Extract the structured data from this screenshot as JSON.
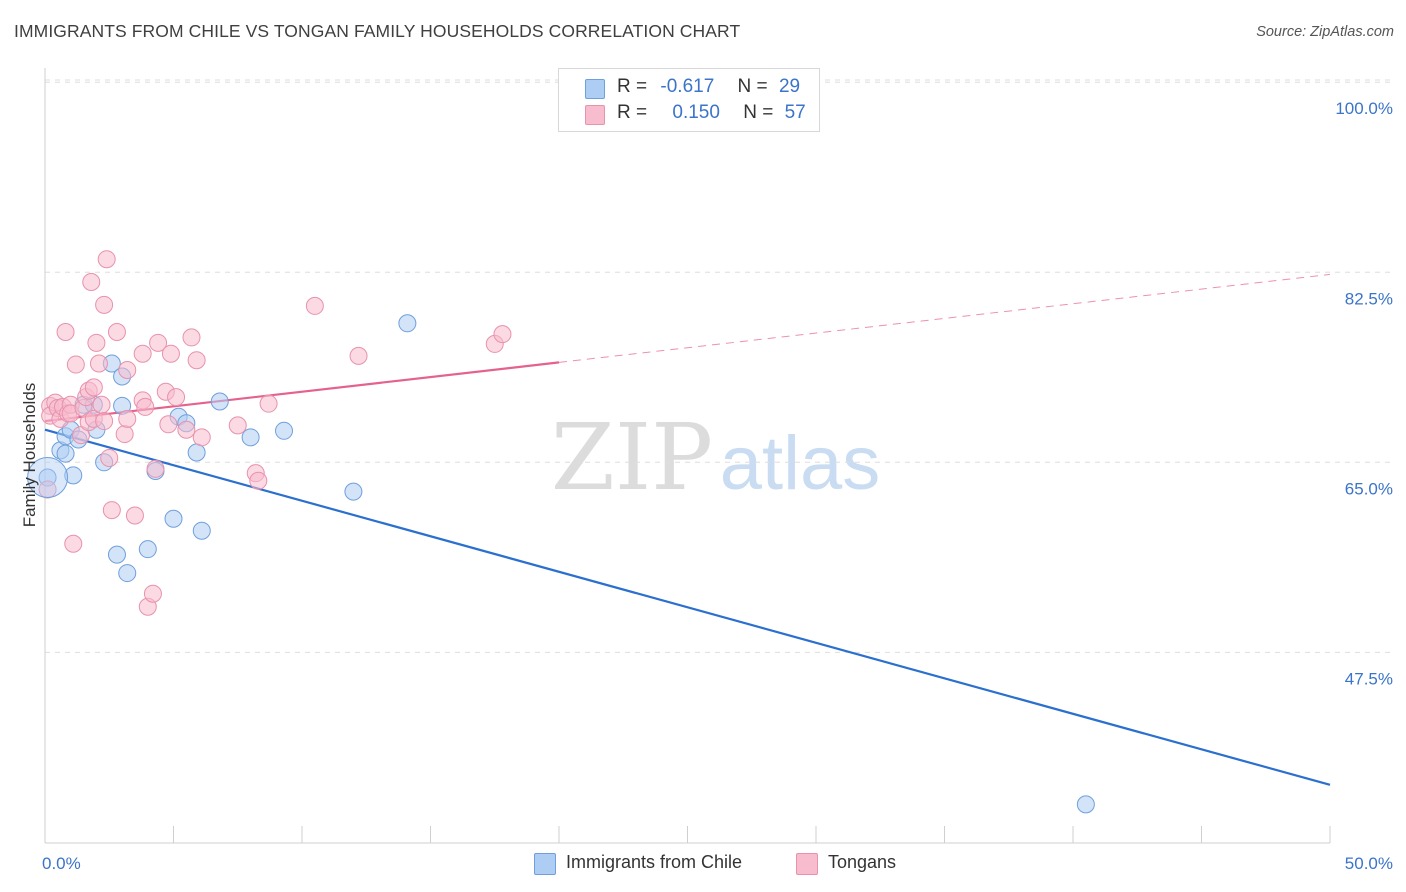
{
  "title": "IMMIGRANTS FROM CHILE VS TONGAN FAMILY HOUSEHOLDS CORRELATION CHART",
  "source": "Source: ZipAtlas.com",
  "watermark": {
    "zip": "ZIP",
    "atlas": "atlas"
  },
  "legend": {
    "rows": [
      {
        "r_label": "R =",
        "r_value": "-0.617",
        "n_label": "N =",
        "n_value": "29",
        "color": "#aecdf4"
      },
      {
        "r_label": "R =",
        "r_value": "0.150",
        "n_label": "N =",
        "n_value": "57",
        "color": "#f7bccd"
      }
    ]
  },
  "bottom_legend": [
    {
      "label": "Immigrants from Chile",
      "color": "#aecdf4"
    },
    {
      "label": "Tongans",
      "color": "#f7bccd"
    }
  ],
  "chart_data": {
    "type": "scatter",
    "title": "IMMIGRANTS FROM CHILE VS TONGAN FAMILY HOUSEHOLDS CORRELATION CHART",
    "xlabel": "",
    "ylabel": "Family Households",
    "xlim": [
      0,
      50
    ],
    "ylim": [
      30,
      105
    ],
    "x_tick_labels": [
      "0.0%",
      "50.0%"
    ],
    "y_ticks": [
      47.5,
      65.0,
      82.5,
      100.0
    ],
    "y_tick_labels": [
      "47.5%",
      "65.0%",
      "82.5%",
      "100.0%"
    ],
    "grid": "horizontal dashed",
    "legend_placement": "top-center",
    "series": [
      {
        "name": "Immigrants from Chile",
        "color": "#aecdf4",
        "stroke": "#6f9fdc",
        "line_color": "#2b6fcf",
        "r": -0.617,
        "n": 29,
        "trend": {
          "x": [
            0,
            50
          ],
          "y": [
            68.0,
            35.3
          ]
        },
        "points": [
          [
            0.1,
            63.6
          ],
          [
            0.6,
            66.1
          ],
          [
            0.8,
            65.8
          ],
          [
            0.8,
            67.4
          ],
          [
            1.0,
            68.0
          ],
          [
            1.1,
            63.8
          ],
          [
            1.3,
            67.1
          ],
          [
            1.5,
            70.3
          ],
          [
            1.9,
            70.3
          ],
          [
            2.0,
            68.0
          ],
          [
            2.3,
            65.0
          ],
          [
            2.6,
            74.1
          ],
          [
            2.8,
            56.5
          ],
          [
            3.0,
            72.9
          ],
          [
            3.2,
            54.8
          ],
          [
            3.0,
            70.2
          ],
          [
            4.0,
            57.0
          ],
          [
            4.3,
            64.2
          ],
          [
            5.0,
            59.8
          ],
          [
            5.2,
            69.2
          ],
          [
            5.5,
            68.6
          ],
          [
            5.9,
            65.9
          ],
          [
            6.1,
            58.7
          ],
          [
            6.8,
            70.6
          ],
          [
            8.0,
            67.3
          ],
          [
            9.3,
            67.9
          ],
          [
            12.0,
            62.3
          ],
          [
            14.1,
            77.8
          ],
          [
            40.5,
            33.5
          ]
        ]
      },
      {
        "name": "Tongans",
        "color": "#f7bccd",
        "stroke": "#e892ac",
        "line_color": "#e4628c",
        "r": 0.15,
        "n": 57,
        "trend": {
          "x": [
            0,
            20
          ],
          "y": [
            68.8,
            74.2
          ]
        },
        "trend_extension": {
          "x": [
            20,
            50
          ],
          "y": [
            74.2,
            82.3
          ]
        },
        "points": [
          [
            0.1,
            62.5
          ],
          [
            0.2,
            70.2
          ],
          [
            0.2,
            69.3
          ],
          [
            0.4,
            70.5
          ],
          [
            0.5,
            70.0
          ],
          [
            0.6,
            69.0
          ],
          [
            0.7,
            70.1
          ],
          [
            0.8,
            77.0
          ],
          [
            0.9,
            69.5
          ],
          [
            1.0,
            70.3
          ],
          [
            1.0,
            69.5
          ],
          [
            1.1,
            57.5
          ],
          [
            1.2,
            74.0
          ],
          [
            1.4,
            67.5
          ],
          [
            1.5,
            70.0
          ],
          [
            1.6,
            71.0
          ],
          [
            1.7,
            68.7
          ],
          [
            1.7,
            71.6
          ],
          [
            1.8,
            81.6
          ],
          [
            1.9,
            71.9
          ],
          [
            1.9,
            69.0
          ],
          [
            2.0,
            76.0
          ],
          [
            2.1,
            74.1
          ],
          [
            2.2,
            70.3
          ],
          [
            2.3,
            68.8
          ],
          [
            2.3,
            79.5
          ],
          [
            2.4,
            83.7
          ],
          [
            2.5,
            65.4
          ],
          [
            2.6,
            60.6
          ],
          [
            2.8,
            77.0
          ],
          [
            3.1,
            67.6
          ],
          [
            3.2,
            69.0
          ],
          [
            3.2,
            73.5
          ],
          [
            3.5,
            60.1
          ],
          [
            3.8,
            70.7
          ],
          [
            3.8,
            75.0
          ],
          [
            3.9,
            70.1
          ],
          [
            4.0,
            51.7
          ],
          [
            4.2,
            52.9
          ],
          [
            4.3,
            64.4
          ],
          [
            4.4,
            76.0
          ],
          [
            4.7,
            71.5
          ],
          [
            4.8,
            68.5
          ],
          [
            4.9,
            75.0
          ],
          [
            5.1,
            71.0
          ],
          [
            5.5,
            68.0
          ],
          [
            5.7,
            76.5
          ],
          [
            5.9,
            74.4
          ],
          [
            6.1,
            67.3
          ],
          [
            7.5,
            68.4
          ],
          [
            8.2,
            64.0
          ],
          [
            8.3,
            63.3
          ],
          [
            8.7,
            70.4
          ],
          [
            10.5,
            79.4
          ],
          [
            12.2,
            74.8
          ],
          [
            17.5,
            75.9
          ],
          [
            17.8,
            76.8
          ]
        ]
      }
    ]
  }
}
